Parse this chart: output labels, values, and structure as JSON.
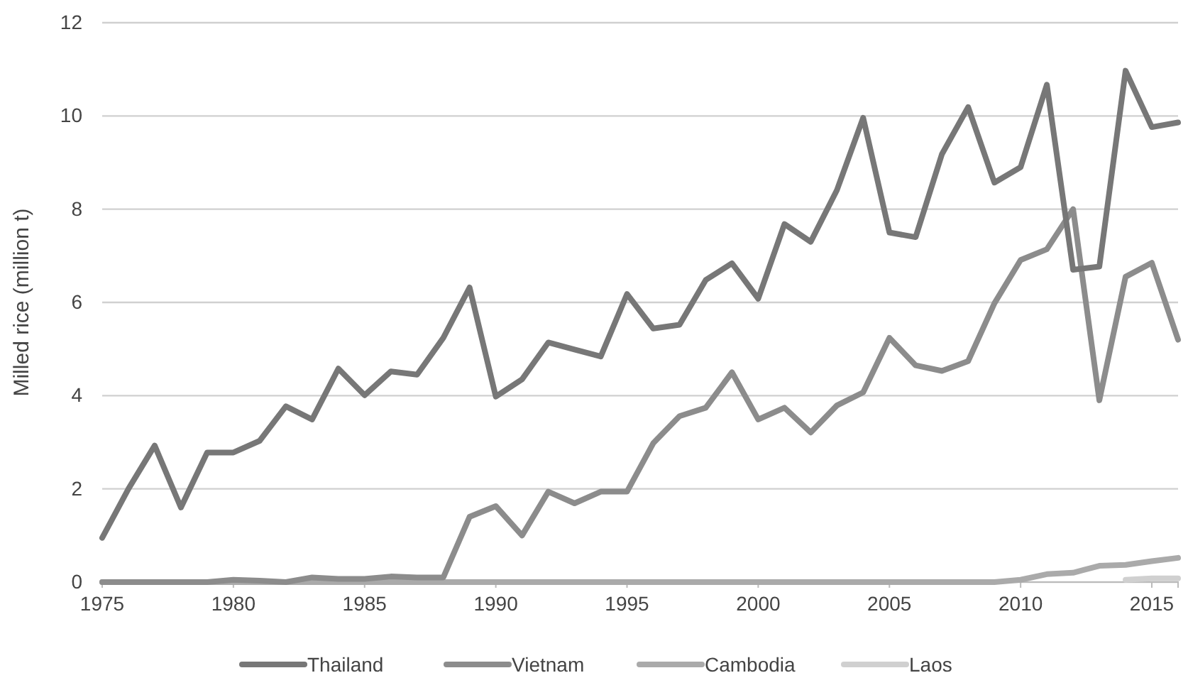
{
  "chart_data": {
    "type": "line",
    "ylabel": "Milled rice (million t)",
    "x": [
      1975,
      1976,
      1977,
      1978,
      1979,
      1980,
      1981,
      1982,
      1983,
      1984,
      1985,
      1986,
      1987,
      1988,
      1989,
      1990,
      1991,
      1992,
      1993,
      1994,
      1995,
      1996,
      1997,
      1998,
      1999,
      2000,
      2001,
      2002,
      2003,
      2004,
      2005,
      2006,
      2007,
      2008,
      2009,
      2010,
      2011,
      2012,
      2013,
      2014,
      2015,
      2016
    ],
    "xlim": [
      1975,
      2016
    ],
    "xticks": [
      1975,
      1980,
      1985,
      1990,
      1995,
      2000,
      2005,
      2010,
      2015
    ],
    "ylim": [
      0,
      12
    ],
    "yticks": [
      0,
      2,
      4,
      6,
      8,
      10,
      12
    ],
    "grid": "y",
    "legend": "bottom",
    "marker": "none",
    "line_style": "solid",
    "series": [
      {
        "name": "Thailand",
        "color": "#777777",
        "values": [
          0.95,
          2.0,
          2.93,
          1.6,
          2.78,
          2.78,
          3.03,
          3.77,
          3.49,
          4.58,
          4.01,
          4.52,
          4.45,
          5.24,
          6.32,
          3.98,
          4.35,
          5.14,
          4.99,
          4.84,
          6.18,
          5.44,
          5.52,
          6.48,
          6.84,
          6.08,
          7.68,
          7.3,
          8.41,
          9.96,
          7.5,
          7.4,
          9.18,
          10.19,
          8.57,
          8.9,
          10.67,
          6.7,
          6.77,
          10.97,
          9.76,
          9.86
        ]
      },
      {
        "name": "Vietnam",
        "color": "#8c8c8c",
        "values": [
          0,
          0,
          0,
          0,
          0,
          0.05,
          0.03,
          0,
          0.1,
          0.07,
          0.07,
          0.12,
          0.1,
          0.1,
          1.4,
          1.63,
          1.0,
          1.94,
          1.69,
          1.94,
          1.94,
          2.98,
          3.56,
          3.74,
          4.5,
          3.49,
          3.74,
          3.21,
          3.79,
          4.07,
          5.24,
          4.65,
          4.53,
          4.74,
          5.98,
          6.91,
          7.14,
          8.0,
          3.9,
          6.55,
          6.85,
          5.2
        ]
      },
      {
        "name": "Cambodia",
        "color": "#aaaaaa",
        "values": [
          0,
          0,
          0,
          0,
          0,
          0,
          0,
          0,
          0,
          0,
          0,
          0,
          0,
          0,
          0,
          0,
          0,
          0,
          0,
          0,
          0,
          0,
          0,
          0,
          0,
          0,
          0,
          0,
          0,
          0,
          0,
          0,
          0,
          0,
          0,
          0.05,
          0.17,
          0.2,
          0.35,
          0.37,
          0.45,
          0.52
        ]
      },
      {
        "name": "Laos",
        "color": "#d0d0d0",
        "values": [
          null,
          null,
          null,
          null,
          null,
          null,
          null,
          null,
          null,
          null,
          null,
          null,
          null,
          null,
          null,
          null,
          null,
          null,
          null,
          null,
          null,
          null,
          null,
          null,
          null,
          null,
          null,
          null,
          null,
          null,
          null,
          null,
          null,
          null,
          null,
          null,
          null,
          null,
          null,
          0.05,
          0.08,
          0.08
        ]
      }
    ]
  }
}
